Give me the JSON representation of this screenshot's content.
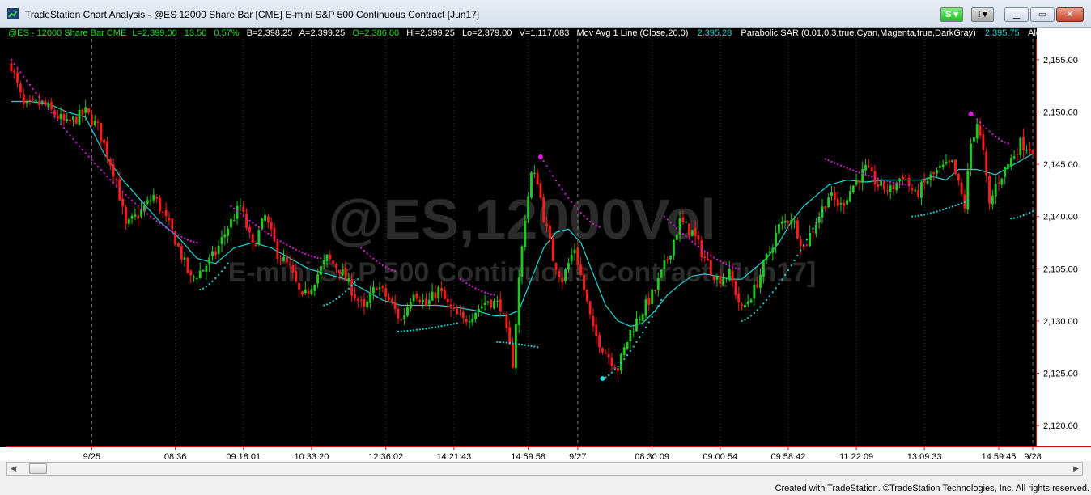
{
  "window": {
    "title": "TradeStation Chart Analysis - @ES 12000 Share Bar [CME] E-mini S&P 500 Continuous Contract [Jun17]",
    "s_button": "S",
    "i_button": "I",
    "min_label": "▁",
    "max_label": "▭",
    "close_label": "✕"
  },
  "status_line": {
    "symbol": "@ES - 12000 Share Bar  CME",
    "last": "L=2,399.00",
    "change": "13.50",
    "pct": "0.57%",
    "bid": "B=2,398.25",
    "ask": "A=2,399.25",
    "open": "O=2,386.00",
    "high": "Hi=2,399.25",
    "low": "Lo=2,379.00",
    "volume": "V=1,117,083",
    "ma_label": "Mov Avg 1 Line (Close,20,0)",
    "ma_value": "2,395.28",
    "sar_label": "Parabolic SAR (0.01,0.3,true,Cyan,Magenta,true,DarkGray)",
    "sar_value": "2,395.75",
    "algo_label": "Algo - Bracke"
  },
  "watermark": {
    "symbol": "@ES,12000Vol",
    "description": "E-mini S&P 500 Continuous Contract [Jun17]"
  },
  "footer": {
    "credit": "Created with TradeStation. ©TradeStation Technologies, Inc. All rights reserved."
  },
  "colors": {
    "up": "#22c722",
    "down": "#ff1a1a",
    "ma": "#19d9d9",
    "sar_up": "#19d9d9",
    "sar_down": "#e019e0",
    "axis": "#cc1111"
  },
  "chart_data": {
    "type": "candlestick",
    "ylim": [
      2118,
      2157
    ],
    "y_ticks": [
      "2,155.00",
      "2,150.00",
      "2,145.00",
      "2,140.00",
      "2,135.00",
      "2,130.00",
      "2,125.00",
      "2,120.00"
    ],
    "y_tick_values": [
      2155,
      2150,
      2145,
      2140,
      2135,
      2130,
      2125,
      2120
    ],
    "x_ticks": [
      "9/25",
      "08:36",
      "09:18:01",
      "10:33:20",
      "12:36:02",
      "14:21:43",
      "14:59:58",
      "9/27",
      "08:30:09",
      "09:00:54",
      "09:58:42",
      "11:22:09",
      "13:09:33",
      "14:59:45",
      "9/28"
    ],
    "session_breaks": [
      "9/25",
      "9/27",
      "9/28"
    ],
    "close_path": [
      [
        0,
        2154.5
      ],
      [
        4,
        2150.5
      ],
      [
        10,
        2150.8
      ],
      [
        18,
        2148.8
      ],
      [
        24,
        2150.0
      ],
      [
        28,
        2148.5
      ],
      [
        34,
        2143.5
      ],
      [
        37,
        2139.0
      ],
      [
        42,
        2140.5
      ],
      [
        46,
        2142.0
      ],
      [
        52,
        2138.5
      ],
      [
        58,
        2134.0
      ],
      [
        62,
        2135.0
      ],
      [
        66,
        2136.5
      ],
      [
        70,
        2139.0
      ],
      [
        74,
        2141.0
      ],
      [
        78,
        2137.0
      ],
      [
        82,
        2140.0
      ],
      [
        86,
        2136.5
      ],
      [
        90,
        2135.0
      ],
      [
        94,
        2132.0
      ],
      [
        98,
        2134.0
      ],
      [
        102,
        2136.0
      ],
      [
        106,
        2135.0
      ],
      [
        110,
        2133.0
      ],
      [
        114,
        2131.0
      ],
      [
        118,
        2133.5
      ],
      [
        122,
        2132.0
      ],
      [
        126,
        2130.0
      ],
      [
        130,
        2133.0
      ],
      [
        134,
        2131.5
      ],
      [
        138,
        2133.0
      ],
      [
        142,
        2131.0
      ],
      [
        146,
        2130.0
      ],
      [
        150,
        2131.0
      ],
      [
        154,
        2132.0
      ],
      [
        158,
        2131.5
      ],
      [
        162,
        2126.0
      ],
      [
        164,
        2134.0
      ],
      [
        166,
        2140.0
      ],
      [
        168,
        2144.0
      ],
      [
        170,
        2143.5
      ],
      [
        172,
        2140.0
      ],
      [
        175,
        2136.0
      ],
      [
        178,
        2134.0
      ],
      [
        182,
        2137.0
      ],
      [
        185,
        2133.0
      ],
      [
        188,
        2129.0
      ],
      [
        192,
        2127.0
      ],
      [
        196,
        2125.5
      ],
      [
        200,
        2129.0
      ],
      [
        204,
        2131.0
      ],
      [
        208,
        2133.0
      ],
      [
        212,
        2136.0
      ],
      [
        216,
        2139.5
      ],
      [
        220,
        2138.5
      ],
      [
        224,
        2136.0
      ],
      [
        228,
        2134.0
      ],
      [
        232,
        2134.5
      ],
      [
        236,
        2131.0
      ],
      [
        240,
        2133.0
      ],
      [
        244,
        2136.0
      ],
      [
        248,
        2139.0
      ],
      [
        252,
        2140.0
      ],
      [
        256,
        2137.0
      ],
      [
        260,
        2139.5
      ],
      [
        264,
        2142.0
      ],
      [
        268,
        2141.0
      ],
      [
        272,
        2143.0
      ],
      [
        276,
        2144.5
      ],
      [
        280,
        2143.0
      ],
      [
        284,
        2142.5
      ],
      [
        288,
        2144.0
      ],
      [
        292,
        2142.0
      ],
      [
        296,
        2143.5
      ],
      [
        300,
        2144.5
      ],
      [
        304,
        2145.0
      ],
      [
        308,
        2141.0
      ],
      [
        310,
        2147.0
      ],
      [
        312,
        2149.0
      ],
      [
        314,
        2146.0
      ],
      [
        316,
        2141.0
      ],
      [
        318,
        2143.0
      ],
      [
        322,
        2145.0
      ],
      [
        326,
        2147.0
      ],
      [
        330,
        2146.5
      ]
    ],
    "moving_average": [
      [
        0,
        2151.0
      ],
      [
        6,
        2151.0
      ],
      [
        12,
        2150.8
      ],
      [
        18,
        2150.0
      ],
      [
        24,
        2149.5
      ],
      [
        30,
        2146.0
      ],
      [
        36,
        2143.5
      ],
      [
        42,
        2141.5
      ],
      [
        48,
        2139.5
      ],
      [
        54,
        2138.0
      ],
      [
        60,
        2136.0
      ],
      [
        66,
        2135.5
      ],
      [
        72,
        2137.0
      ],
      [
        78,
        2137.5
      ],
      [
        84,
        2137.0
      ],
      [
        90,
        2136.0
      ],
      [
        96,
        2135.0
      ],
      [
        102,
        2134.5
      ],
      [
        108,
        2134.0
      ],
      [
        114,
        2133.0
      ],
      [
        120,
        2132.0
      ],
      [
        126,
        2131.5
      ],
      [
        132,
        2131.5
      ],
      [
        138,
        2131.5
      ],
      [
        144,
        2131.3
      ],
      [
        150,
        2131.0
      ],
      [
        156,
        2130.5
      ],
      [
        160,
        2130.5
      ],
      [
        164,
        2131.0
      ],
      [
        168,
        2134.0
      ],
      [
        172,
        2137.0
      ],
      [
        176,
        2138.5
      ],
      [
        180,
        2138.8
      ],
      [
        184,
        2137.5
      ],
      [
        188,
        2134.5
      ],
      [
        192,
        2131.5
      ],
      [
        196,
        2130.0
      ],
      [
        200,
        2129.5
      ],
      [
        204,
        2129.8
      ],
      [
        208,
        2131.0
      ],
      [
        212,
        2132.5
      ],
      [
        216,
        2133.5
      ],
      [
        220,
        2134.3
      ],
      [
        224,
        2134.5
      ],
      [
        228,
        2134.3
      ],
      [
        232,
        2134.0
      ],
      [
        236,
        2134.0
      ],
      [
        240,
        2135.0
      ],
      [
        244,
        2136.0
      ],
      [
        248,
        2137.5
      ],
      [
        252,
        2139.5
      ],
      [
        256,
        2141.0
      ],
      [
        260,
        2142.0
      ],
      [
        264,
        2143.0
      ],
      [
        270,
        2143.5
      ],
      [
        276,
        2143.3
      ],
      [
        282,
        2143.5
      ],
      [
        288,
        2143.5
      ],
      [
        294,
        2143.5
      ],
      [
        298,
        2143.8
      ],
      [
        302,
        2143.5
      ],
      [
        306,
        2144.5
      ],
      [
        312,
        2144.5
      ],
      [
        318,
        2144.0
      ],
      [
        324,
        2145.0
      ],
      [
        330,
        2146.0
      ]
    ],
    "parabolic_sar": [
      {
        "color": "magenta",
        "from": 0,
        "to": 60,
        "start": 2155.0,
        "end": 2137.5
      },
      {
        "color": "cyan",
        "from": 61,
        "to": 70,
        "start": 2133.0,
        "end": 2135.5
      },
      {
        "color": "magenta",
        "from": 71,
        "to": 100,
        "start": 2141.0,
        "end": 2136.0
      },
      {
        "color": "cyan",
        "from": 101,
        "to": 112,
        "start": 2131.5,
        "end": 2134.0
      },
      {
        "color": "magenta",
        "from": 113,
        "to": 124,
        "start": 2137.0,
        "end": 2134.8
      },
      {
        "color": "cyan",
        "from": 125,
        "to": 144,
        "start": 2129.0,
        "end": 2129.8
      },
      {
        "color": "magenta",
        "from": 145,
        "to": 156,
        "start": 2134.0,
        "end": 2132.5
      },
      {
        "color": "cyan",
        "from": 157,
        "to": 170,
        "start": 2128.0,
        "end": 2127.5
      },
      {
        "color": "magenta",
        "from": 171,
        "to": 190,
        "start": 2145.8,
        "end": 2139.0
      },
      {
        "color": "cyan",
        "from": 191,
        "to": 210,
        "start": 2124.5,
        "end": 2132.0
      },
      {
        "color": "magenta",
        "from": 211,
        "to": 235,
        "start": 2140.0,
        "end": 2135.0
      },
      {
        "color": "cyan",
        "from": 236,
        "to": 262,
        "start": 2130.0,
        "end": 2140.5
      },
      {
        "color": "magenta",
        "from": 263,
        "to": 290,
        "start": 2145.5,
        "end": 2143.0
      },
      {
        "color": "cyan",
        "from": 291,
        "to": 309,
        "start": 2140.0,
        "end": 2141.5
      },
      {
        "color": "magenta",
        "from": 310,
        "to": 322,
        "start": 2150.0,
        "end": 2147.0
      },
      {
        "color": "cyan",
        "from": 323,
        "to": 330,
        "start": 2139.8,
        "end": 2140.5
      }
    ],
    "markers": [
      {
        "bar": 171,
        "price": 2145.7,
        "color": "magenta"
      },
      {
        "bar": 191,
        "price": 2124.5,
        "color": "cyan"
      },
      {
        "bar": 310,
        "price": 2149.8,
        "color": "magenta"
      }
    ]
  }
}
